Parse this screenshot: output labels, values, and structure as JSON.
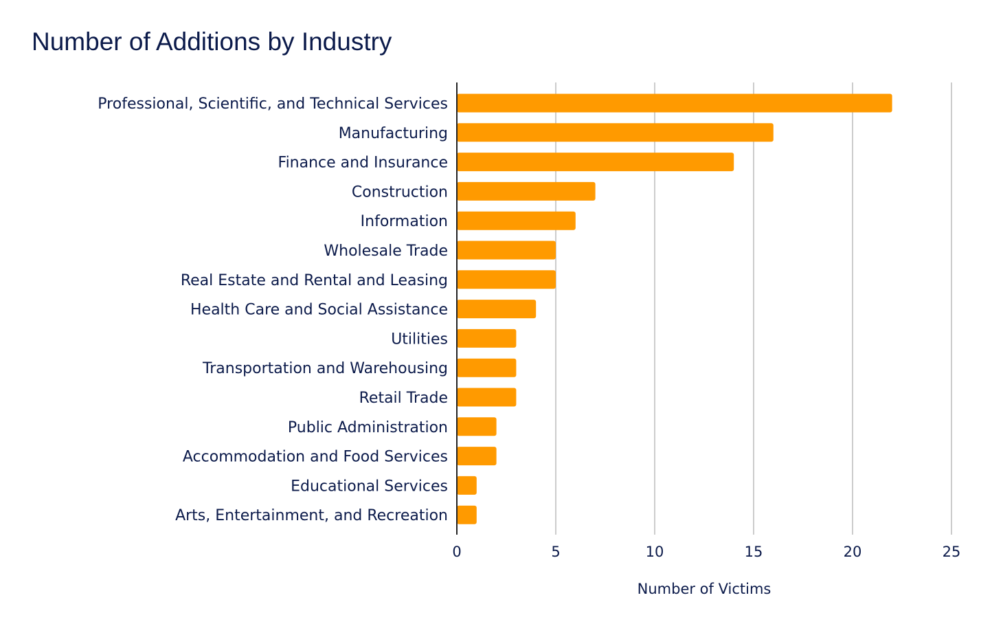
{
  "chart_data": {
    "type": "bar",
    "orientation": "horizontal",
    "title": "Number of Additions by Industry",
    "xlabel": "Number of Victims",
    "ylabel": "",
    "xlim": [
      0,
      25
    ],
    "xticks": [
      0,
      5,
      10,
      15,
      20,
      25
    ],
    "grid": true,
    "legend": "none",
    "bar_color": "#ff9a00",
    "categories": [
      "Professional, Scientific, and Technical Services",
      "Manufacturing",
      "Finance and Insurance",
      "Construction",
      "Information",
      "Wholesale Trade",
      "Real Estate and Rental and Leasing",
      "Health Care and Social Assistance",
      "Utilities",
      "Transportation and Warehousing",
      "Retail Trade",
      "Public Administration",
      "Accommodation and Food Services",
      "Educational Services",
      "Arts, Entertainment, and Recreation"
    ],
    "values": [
      22,
      16,
      14,
      7,
      6,
      5,
      5,
      4,
      3,
      3,
      3,
      2,
      2,
      1,
      1
    ]
  }
}
